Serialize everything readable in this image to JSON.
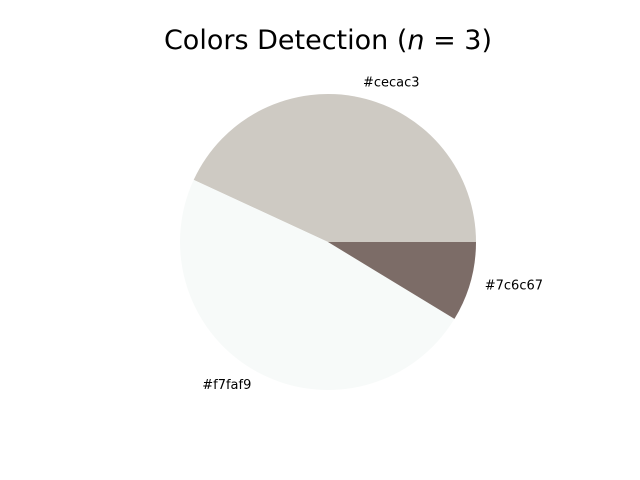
{
  "chart_data": {
    "type": "pie",
    "title": "Colors Detection (n = 3)",
    "title_parts": {
      "prefix": "Colors Detection (",
      "variable": "n",
      "operator": " = ",
      "value": "3",
      "suffix": ")"
    },
    "start_angle_deg": 0,
    "direction": "counterclockwise",
    "slices": [
      {
        "label": "#cecac3",
        "color": "#cecac3",
        "value": 0.431
      },
      {
        "label": "#f7faf9",
        "color": "#f7faf9",
        "value": 0.482
      },
      {
        "label": "#7c6c67",
        "color": "#7c6c67",
        "value": 0.087
      }
    ]
  }
}
